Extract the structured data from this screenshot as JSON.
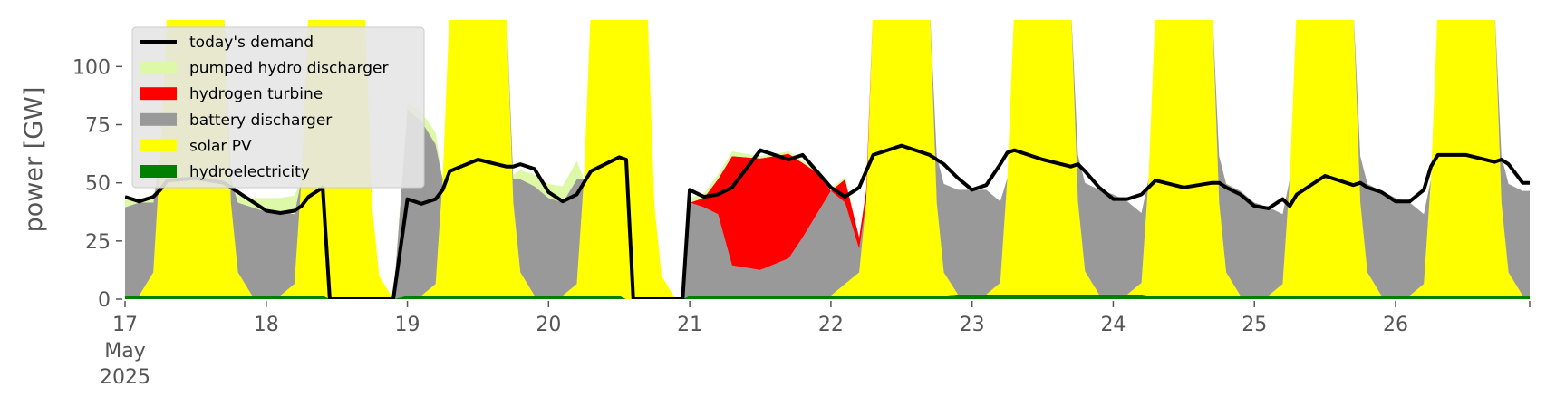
{
  "chart_data": {
    "type": "area",
    "title": "",
    "xlabel": "",
    "ylabel": "power [GW]",
    "ylim": [
      0,
      120
    ],
    "xlim": [
      17,
      26.95
    ],
    "grid": false,
    "legend_position": "top-left",
    "x_ticks": [
      {
        "value": 17,
        "lines": [
          "17",
          "May",
          "2025"
        ]
      },
      {
        "value": 18,
        "lines": [
          "18"
        ]
      },
      {
        "value": 19,
        "lines": [
          "19"
        ]
      },
      {
        "value": 20,
        "lines": [
          "20"
        ]
      },
      {
        "value": 21,
        "lines": [
          "21"
        ]
      },
      {
        "value": 22,
        "lines": [
          "22"
        ]
      },
      {
        "value": 23,
        "lines": [
          "23"
        ]
      },
      {
        "value": 24,
        "lines": [
          "24"
        ]
      },
      {
        "value": 25,
        "lines": [
          "25"
        ]
      },
      {
        "value": 26,
        "lines": [
          "26"
        ]
      }
    ],
    "y_ticks": [
      0,
      25,
      50,
      75,
      100
    ],
    "x": [
      17.0,
      17.1,
      17.2,
      17.25,
      17.3,
      17.5,
      17.7,
      17.75,
      17.8,
      17.9,
      18.0,
      18.1,
      18.2,
      18.25,
      18.3,
      18.4,
      18.45,
      18.5,
      18.7,
      18.75,
      18.8,
      18.9,
      19.0,
      19.1,
      19.2,
      19.25,
      19.3,
      19.5,
      19.7,
      19.75,
      19.8,
      19.9,
      20.0,
      20.1,
      20.2,
      20.25,
      20.3,
      20.5,
      20.55,
      20.6,
      20.7,
      20.75,
      20.8,
      20.9,
      20.95,
      21.0,
      21.1,
      21.2,
      21.3,
      21.5,
      21.7,
      21.8,
      21.9,
      22.0,
      22.1,
      22.2,
      22.25,
      22.3,
      22.5,
      22.7,
      22.75,
      22.8,
      22.9,
      23.0,
      23.1,
      23.2,
      23.25,
      23.3,
      23.5,
      23.7,
      23.75,
      23.8,
      23.9,
      24.0,
      24.1,
      24.2,
      24.25,
      24.3,
      24.5,
      24.7,
      24.75,
      24.8,
      24.9,
      25.0,
      25.1,
      25.2,
      25.25,
      25.3,
      25.5,
      25.7,
      25.75,
      25.8,
      25.9,
      26.0,
      26.1,
      26.2,
      26.25,
      26.3,
      26.5,
      26.7,
      26.75,
      26.8,
      26.9,
      26.95
    ],
    "series": [
      {
        "name": "hydroelectricity",
        "color": "#008000",
        "values": [
          1.5,
          1.5,
          1.5,
          1.5,
          1.5,
          1.5,
          1.5,
          1.5,
          1.5,
          1.5,
          1.5,
          1.5,
          1.5,
          1.5,
          1.5,
          1.5,
          0,
          0,
          0,
          0,
          0,
          0,
          1.5,
          1.5,
          1.5,
          1.5,
          1.5,
          1.5,
          1.5,
          1.5,
          1.5,
          1.5,
          1.5,
          1.5,
          1.5,
          1.5,
          1.5,
          1.5,
          0,
          0,
          0,
          0,
          0,
          0,
          0,
          1.5,
          1.5,
          1.5,
          1.5,
          1.5,
          1.5,
          1.5,
          1.5,
          1.5,
          1.5,
          1.5,
          1.5,
          1.5,
          1.5,
          1.5,
          1.5,
          1.5,
          2,
          2,
          2,
          2,
          2,
          2,
          2,
          2,
          2,
          2,
          2,
          2,
          2,
          2,
          1.5,
          1.5,
          1.5,
          1.5,
          1.5,
          1.5,
          1.5,
          1.5,
          1.5,
          1.5,
          1.5,
          1.5,
          1.5,
          1.5,
          1.5,
          1.5,
          1.5,
          1.5,
          1.5,
          1.5,
          1.5,
          1.5,
          1.5,
          1.5,
          1.5,
          1.5,
          1.5,
          1.5
        ]
      },
      {
        "name": "solar PV",
        "color": "#ffff00",
        "values": [
          0,
          0,
          10,
          60,
          125,
          125,
          125,
          40,
          10,
          0,
          0,
          0,
          5,
          50,
          125,
          125,
          125,
          125,
          125,
          40,
          10,
          0,
          0,
          0,
          5,
          50,
          125,
          125,
          125,
          40,
          10,
          0,
          0,
          0,
          5,
          50,
          125,
          125,
          125,
          125,
          125,
          40,
          10,
          0,
          0,
          0,
          0,
          0,
          0,
          0,
          0,
          0,
          0,
          0,
          5,
          10,
          40,
          125,
          125,
          125,
          40,
          10,
          0,
          0,
          0,
          5,
          50,
          125,
          125,
          125,
          40,
          10,
          0,
          0,
          0,
          5,
          50,
          125,
          125,
          125,
          40,
          10,
          0,
          0,
          0,
          5,
          50,
          125,
          125,
          125,
          40,
          10,
          0,
          0,
          0,
          5,
          50,
          125,
          125,
          125,
          40,
          10,
          0,
          0
        ]
      },
      {
        "name": "battery discharger",
        "color": "#999999",
        "values": [
          38,
          40,
          30,
          0,
          0,
          0,
          0,
          10,
          30,
          38,
          36,
          36,
          30,
          0,
          0,
          0,
          0,
          0,
          0,
          0,
          0,
          0,
          80,
          75,
          60,
          0,
          0,
          0,
          0,
          10,
          40,
          47,
          42,
          40,
          45,
          0,
          0,
          0,
          0,
          0,
          0,
          0,
          0,
          0,
          0,
          40,
          38,
          35,
          13,
          11,
          16,
          25,
          35,
          45,
          35,
          10,
          0,
          0,
          0,
          0,
          20,
          38,
          45,
          45,
          45,
          35,
          0,
          0,
          0,
          0,
          20,
          38,
          45,
          43,
          40,
          30,
          0,
          0,
          0,
          0,
          20,
          38,
          45,
          40,
          38,
          30,
          0,
          0,
          0,
          0,
          20,
          38,
          45,
          42,
          40,
          30,
          0,
          0,
          0,
          0,
          20,
          38,
          45,
          45
        ]
      },
      {
        "name": "hydrogen turbine",
        "color": "#ff0000",
        "values": [
          0,
          0,
          0,
          0,
          0,
          0,
          0,
          0,
          0,
          0,
          0,
          0,
          0,
          0,
          0,
          0,
          0,
          0,
          0,
          0,
          0,
          0,
          0,
          0,
          0,
          0,
          0,
          0,
          0,
          0,
          0,
          0,
          0,
          0,
          0,
          0,
          0,
          0,
          0,
          0,
          0,
          0,
          0,
          0,
          0,
          0,
          4,
          15,
          47,
          48,
          45,
          32,
          18,
          0,
          10,
          5,
          5,
          0,
          0,
          0,
          0,
          0,
          0,
          0,
          0,
          0,
          0,
          0,
          0,
          0,
          0,
          0,
          0,
          0,
          0,
          0,
          0,
          0,
          0,
          0,
          0,
          0,
          0,
          0,
          0,
          0,
          0,
          0,
          0,
          0,
          0,
          0,
          0,
          0,
          0,
          0,
          0,
          0,
          0,
          0,
          0,
          0,
          0,
          0
        ]
      },
      {
        "name": "pumped hydro discharger",
        "color": "#ddf8a6",
        "values": [
          3,
          2,
          2,
          0,
          0,
          0,
          0,
          2,
          3,
          4,
          6,
          6,
          8,
          0,
          0,
          0,
          0,
          0,
          0,
          0,
          0,
          0,
          3,
          4,
          5,
          0,
          0,
          0,
          0,
          2,
          4,
          5,
          6,
          7,
          8,
          0,
          0,
          0,
          0,
          0,
          0,
          0,
          0,
          0,
          0,
          2,
          2,
          2,
          2,
          1,
          1,
          1,
          1,
          1,
          1,
          0,
          0,
          0,
          0,
          0,
          0,
          0,
          0,
          0,
          0,
          0,
          0,
          0,
          0,
          0,
          0,
          0,
          0,
          0,
          0,
          0,
          0,
          0,
          0,
          0,
          0,
          0,
          0,
          0,
          0,
          0,
          0,
          0,
          0,
          0,
          0,
          0,
          0,
          0,
          0,
          0,
          0,
          0,
          0,
          0,
          0,
          0,
          0,
          0
        ]
      },
      {
        "name": "today's demand",
        "color": "#000000",
        "type": "line",
        "values": [
          44,
          42,
          44,
          47,
          51,
          52,
          50,
          48,
          46,
          42,
          38,
          37,
          38,
          40,
          44,
          48,
          0,
          0,
          0,
          0,
          0,
          0,
          43,
          41,
          43,
          47,
          55,
          60,
          57,
          57,
          58,
          56,
          46,
          42,
          45,
          50,
          55,
          61,
          60,
          0,
          0,
          0,
          0,
          0,
          0,
          47,
          44,
          45,
          48,
          64,
          60,
          62,
          55,
          48,
          44,
          48,
          55,
          62,
          66,
          62,
          60,
          58,
          52,
          47,
          49,
          58,
          63,
          64,
          60,
          57,
          58,
          55,
          48,
          43,
          43,
          45,
          48,
          51,
          48,
          50,
          50,
          48,
          45,
          40,
          39,
          43,
          40,
          45,
          53,
          49,
          50,
          48,
          46,
          42,
          42,
          47,
          57,
          62,
          62,
          59,
          60,
          58,
          50,
          50
        ]
      }
    ],
    "legend": [
      "today's demand",
      "pumped hydro discharger",
      "hydrogen turbine",
      "battery discharger",
      "solar PV",
      "hydroelectricity"
    ]
  }
}
